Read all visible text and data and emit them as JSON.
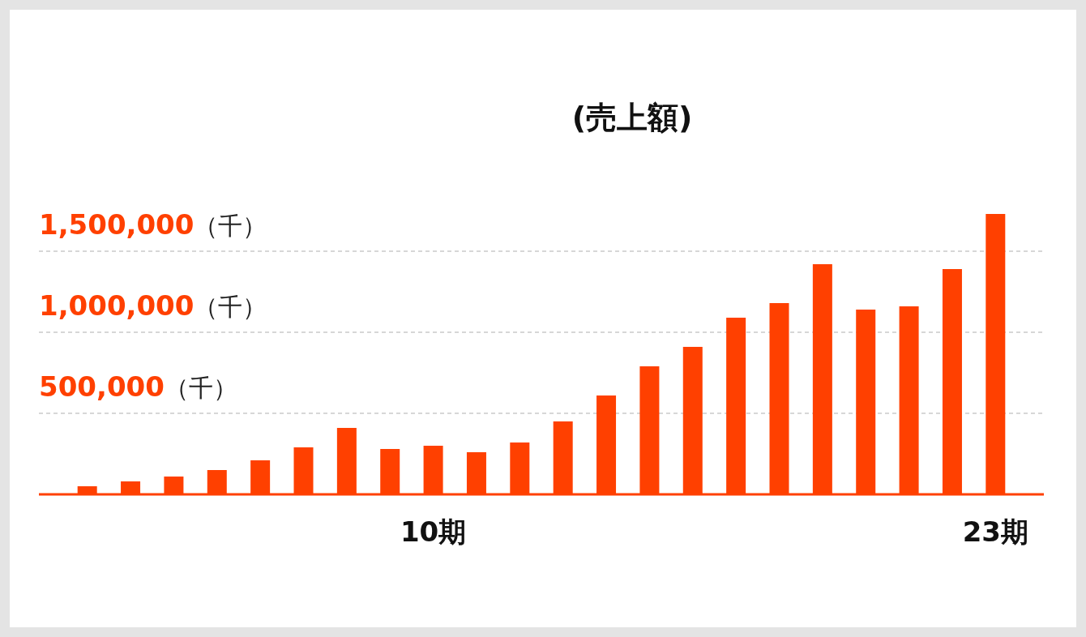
{
  "chart_data": {
    "type": "bar",
    "title": "(売上額)",
    "categories": [
      null,
      null,
      null,
      null,
      null,
      null,
      null,
      null,
      "10期",
      null,
      null,
      null,
      null,
      null,
      null,
      null,
      null,
      null,
      null,
      null,
      null,
      "23期"
    ],
    "values": [
      50000,
      80000,
      110000,
      150000,
      210000,
      290000,
      410000,
      280000,
      300000,
      260000,
      320000,
      450000,
      610000,
      790000,
      910000,
      1090000,
      1180000,
      1420000,
      1140000,
      1160000,
      1390000,
      1730000
    ],
    "color": "#ff4000",
    "ylim": [
      0,
      1730000
    ],
    "yticks": [
      {
        "value": 500000,
        "label": "500,000（千）"
      },
      {
        "value": 1000000,
        "label": "1,000,000（千）"
      },
      {
        "value": 1500000,
        "label": "1,500,000（千）"
      }
    ],
    "grid": "y"
  }
}
